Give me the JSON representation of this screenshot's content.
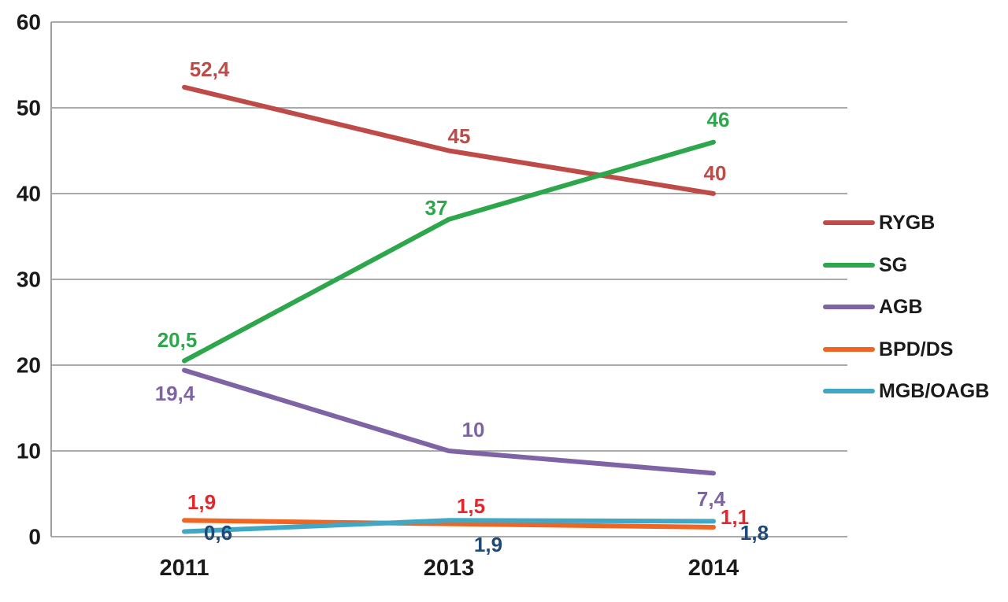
{
  "chart_data": {
    "type": "line",
    "title": "",
    "xlabel": "",
    "ylabel": "",
    "categories": [
      "2011",
      "2013",
      "2014"
    ],
    "series": [
      {
        "name": "RYGB",
        "values": [
          52.4,
          45,
          40
        ],
        "point_labels": [
          "52,4",
          "45",
          "40"
        ],
        "color": "#BE4B48",
        "label_color": "#BE4B48"
      },
      {
        "name": "SG",
        "values": [
          20.5,
          37,
          46
        ],
        "point_labels": [
          "20,5",
          "37",
          "46"
        ],
        "color": "#2DA64C",
        "label_color": "#2DA64C"
      },
      {
        "name": "AGB",
        "values": [
          19.4,
          10,
          7.4
        ],
        "point_labels": [
          "19,4",
          "10",
          "7,4"
        ],
        "color": "#7E63A5",
        "label_color": "#7E63A5"
      },
      {
        "name": "BPD/DS",
        "values": [
          1.9,
          1.5,
          1.1
        ],
        "point_labels": [
          "1,9",
          "1,5",
          "1,1"
        ],
        "color": "#F16522",
        "label_color": "#E2282C"
      },
      {
        "name": "MGB/OAGB",
        "values": [
          0.6,
          1.9,
          1.8
        ],
        "point_labels": [
          "0,6",
          "1,9",
          "1,8"
        ],
        "color": "#41A7C5",
        "label_color": "#1F4977"
      }
    ],
    "y_ticks": [
      "0",
      "10",
      "20",
      "30",
      "40",
      "50",
      "60"
    ],
    "y_tick_values": [
      0,
      10,
      20,
      30,
      40,
      50,
      60
    ],
    "ylim": [
      0,
      60
    ],
    "grid": "horizontal",
    "legend_position": "right",
    "legend": [
      "RYGB",
      "SG",
      "AGB",
      "BPD/DS",
      "MGB/OAGB"
    ]
  },
  "colors": {
    "background": "#FFFFFF",
    "gridline": "#9E9E9E",
    "axis_line": "#9E9E9E",
    "tick_label": "#1A1A1A",
    "x_label": "#1A1A1A",
    "legend_text": "#1A1A1A"
  }
}
